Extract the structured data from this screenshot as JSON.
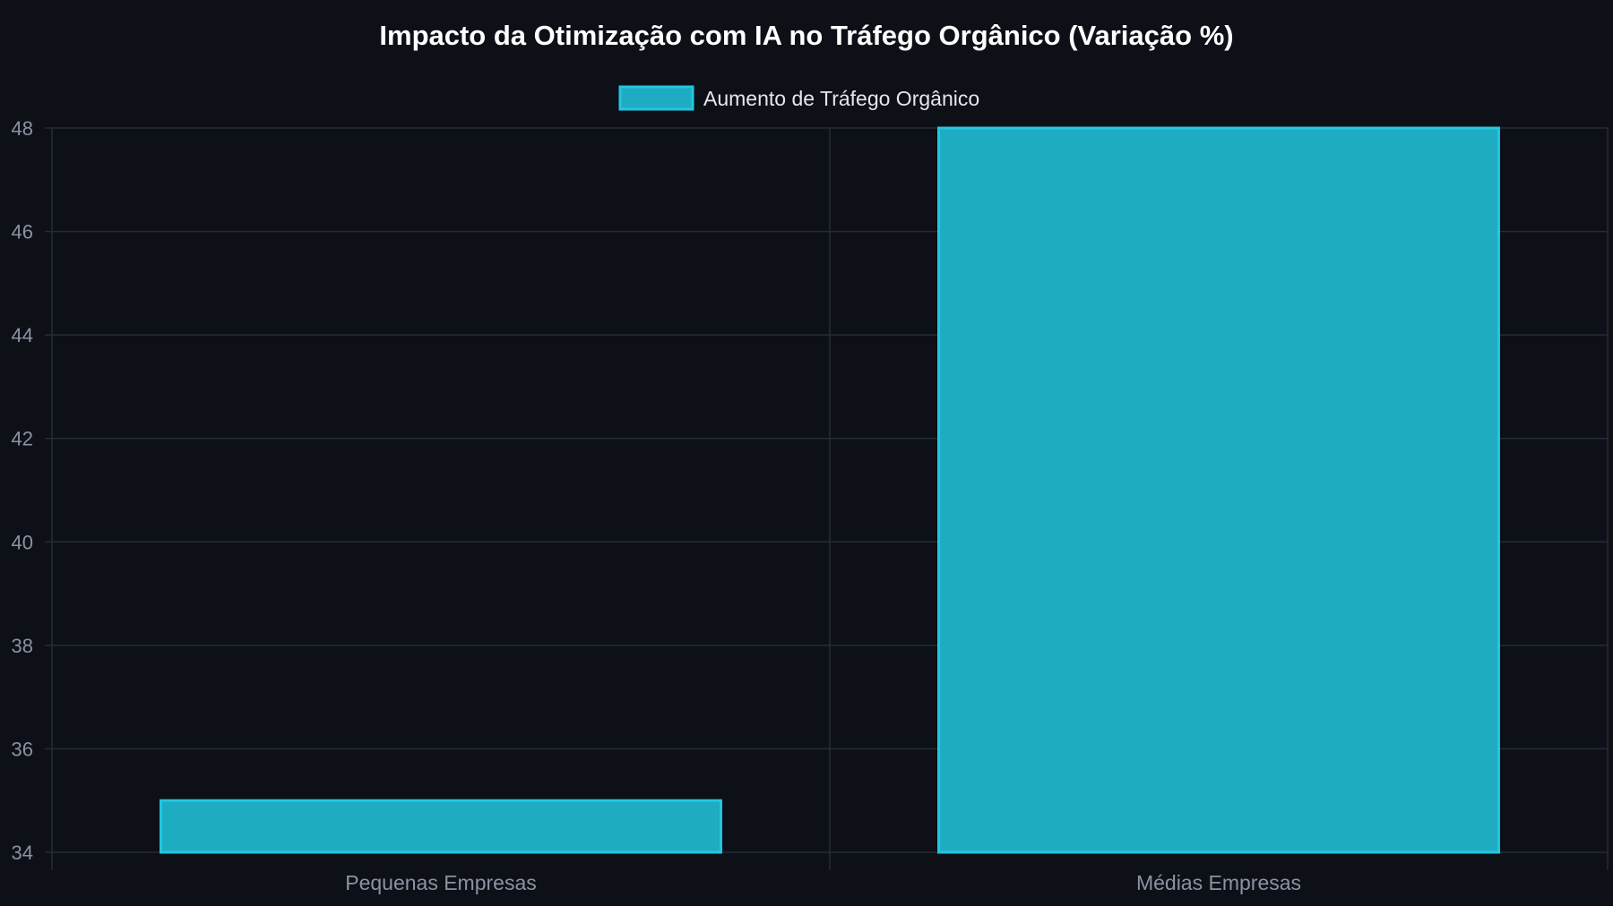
{
  "chart_data": {
    "type": "bar",
    "title": "Impacto da Otimização com IA no Tráfego Orgânico (Variação %)",
    "categories": [
      "Pequenas Empresas",
      "Médias Empresas"
    ],
    "series": [
      {
        "name": "Aumento de Tráfego Orgânico",
        "values": [
          35,
          48
        ]
      }
    ],
    "ylim": [
      34,
      48
    ],
    "yticks": [
      34,
      36,
      38,
      40,
      42,
      44,
      46,
      48
    ],
    "grid": true,
    "legend_position": "top-center",
    "colors": {
      "background": "#0d1017",
      "bar_fill": "#1eacc2",
      "bar_stroke": "#22c7e0",
      "grid": "#262b35",
      "tick_label": "#8b93a1",
      "title": "#ffffff"
    }
  }
}
